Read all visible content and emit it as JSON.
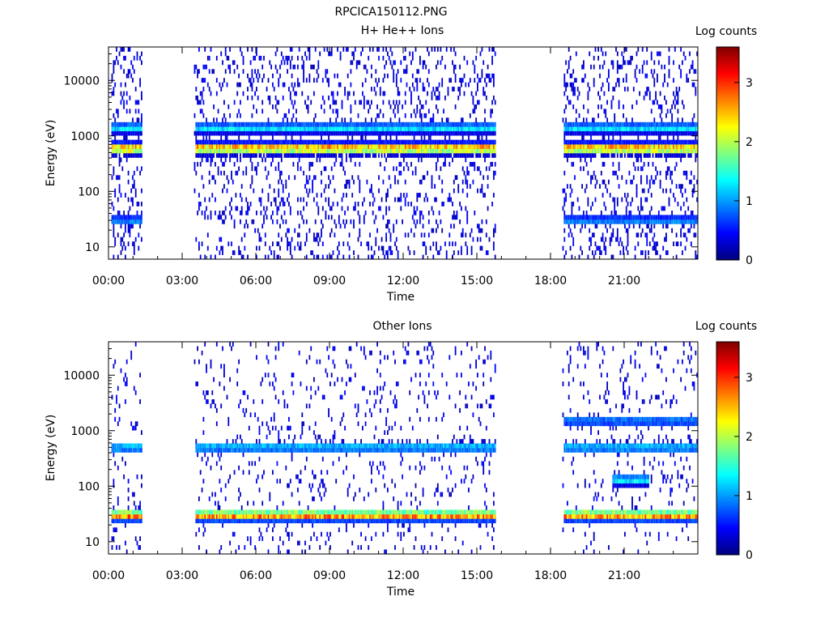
{
  "figure": {
    "filename": "RPCICA150112.PNG"
  },
  "colorscale": {
    "label": "Log counts",
    "stops": [
      "#00007f",
      "#0000ff",
      "#0080ff",
      "#00ffff",
      "#80ff80",
      "#ffff00",
      "#ff8000",
      "#ff0000",
      "#7f0000"
    ],
    "empty": "#ffffff"
  },
  "chart_data": [
    {
      "type": "heatmap",
      "title": "H+ He++ Ions",
      "xlabel": "Time",
      "ylabel": "Energy (eV)",
      "xlim": [
        "00:00",
        "24:00"
      ],
      "x_ticks": [
        "00:00",
        "03:00",
        "06:00",
        "09:00",
        "12:00",
        "15:00",
        "18:00",
        "21:00"
      ],
      "y_scale": "log",
      "ylim": [
        6,
        40000
      ],
      "y_ticks": [
        "10",
        "100",
        "1000",
        "10000"
      ],
      "colorbar_label": "Log counts",
      "colorbar_ticks": [
        "0",
        "1",
        "2",
        "3"
      ],
      "zlim": [
        0,
        3.6
      ],
      "data_gaps_hours": [
        [
          1.5,
          3.5
        ],
        [
          15.8,
          18.5
        ]
      ],
      "bands": [
        {
          "energy_eV": 600,
          "log_counts": 3.0,
          "hours": [
            [
              0.1,
              1.4
            ],
            [
              3.5,
              15.8
            ],
            [
              18.5,
              24.0
            ]
          ]
        },
        {
          "energy_eV": 1400,
          "log_counts": 1.4,
          "hours": [
            [
              0.1,
              1.4
            ],
            [
              3.5,
              15.8
            ],
            [
              18.5,
              24.0
            ]
          ]
        },
        {
          "energy_eV": 30,
          "log_counts": 1.0,
          "hours": [
            [
              0.1,
              1.4
            ],
            [
              18.5,
              24.0
            ]
          ]
        }
      ]
    },
    {
      "type": "heatmap",
      "title": "Other Ions",
      "xlabel": "Time",
      "ylabel": "Energy (eV)",
      "xlim": [
        "00:00",
        "24:00"
      ],
      "x_ticks": [
        "00:00",
        "03:00",
        "06:00",
        "09:00",
        "12:00",
        "15:00",
        "18:00",
        "21:00"
      ],
      "y_scale": "log",
      "ylim": [
        6,
        40000
      ],
      "y_ticks": [
        "10",
        "100",
        "1000",
        "10000"
      ],
      "colorbar_label": "Log counts",
      "colorbar_ticks": [
        "0",
        "1",
        "2",
        "3"
      ],
      "zlim": [
        0,
        3.6
      ],
      "data_gaps_hours": [
        [
          1.5,
          3.5
        ],
        [
          15.8,
          18.5
        ]
      ],
      "bands": [
        {
          "energy_eV": 30,
          "log_counts": 3.0,
          "hours": [
            [
              0.1,
              1.4
            ],
            [
              3.5,
              15.8
            ],
            [
              18.5,
              24.0
            ]
          ]
        },
        {
          "energy_eV": 500,
          "log_counts": 1.3,
          "hours": [
            [
              0.1,
              1.4
            ],
            [
              3.5,
              15.8
            ],
            [
              18.5,
              24.0
            ]
          ]
        },
        {
          "energy_eV": 1500,
          "log_counts": 1.0,
          "hours": [
            [
              18.5,
              24.0
            ]
          ]
        },
        {
          "energy_eV": 130,
          "log_counts": 1.5,
          "hours": [
            [
              20.5,
              22.0
            ]
          ]
        }
      ]
    }
  ]
}
